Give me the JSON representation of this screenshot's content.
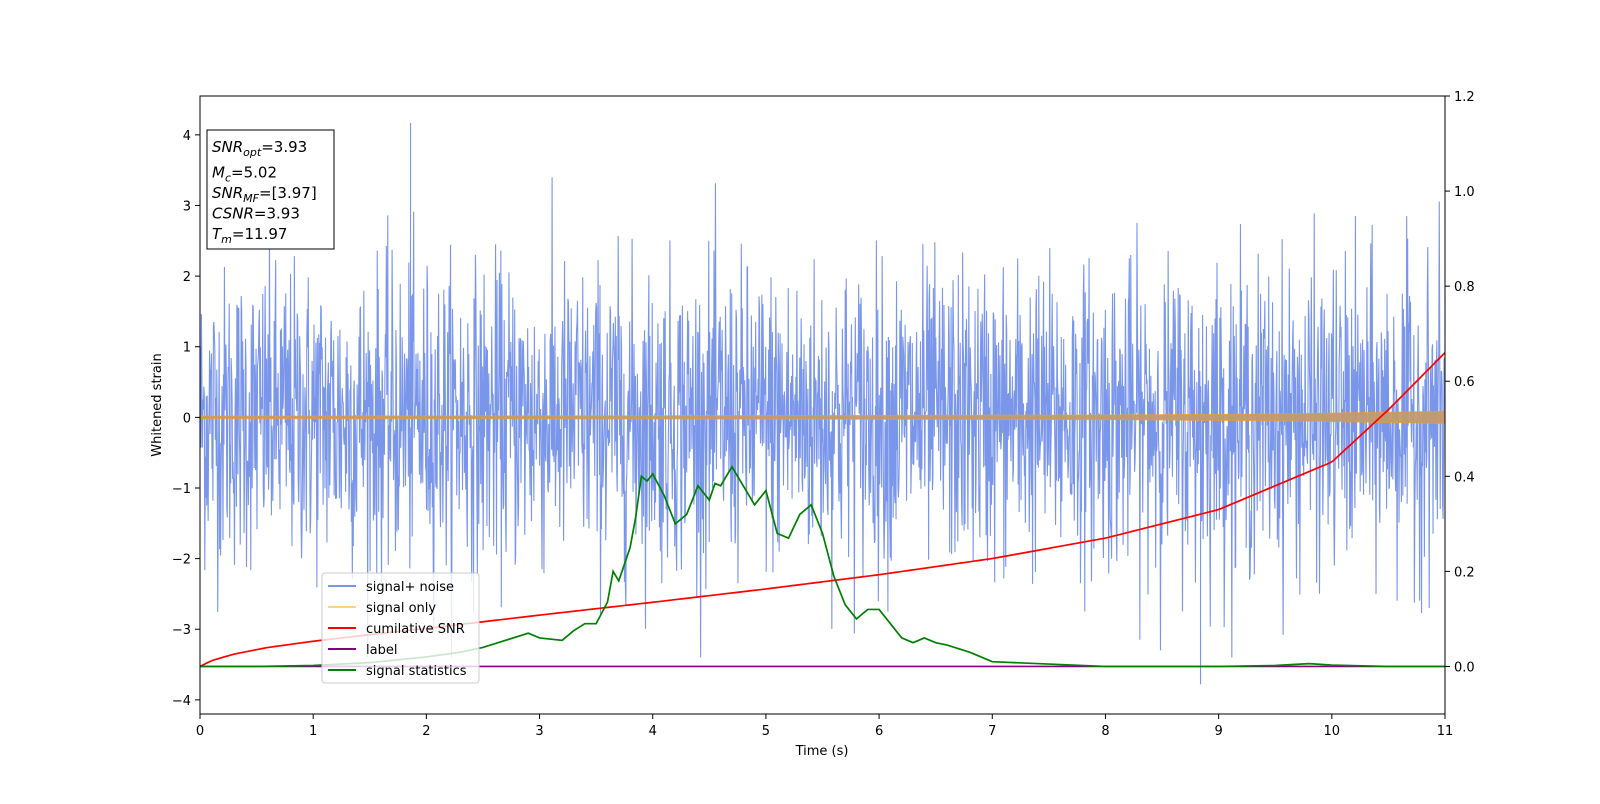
{
  "chart_data": {
    "type": "line",
    "title": "",
    "xlabel": "Time (s)",
    "ylabel": "Whitened strain",
    "xlim": [
      0,
      11
    ],
    "ylim_left": [
      -4.2,
      4.55
    ],
    "ylim_right": [
      -0.1,
      1.2
    ],
    "xticks": [
      "0",
      "1",
      "2",
      "3",
      "4",
      "5",
      "6",
      "7",
      "8",
      "9",
      "10",
      "11"
    ],
    "yticks_left": [
      "−4",
      "−3",
      "−2",
      "−1",
      "0",
      "1",
      "2",
      "3",
      "4"
    ],
    "yticks_right": [
      "0.0",
      "0.2",
      "0.4",
      "0.6",
      "0.8",
      "1.0",
      "1.2"
    ],
    "grid": false,
    "legend_position": "lower-left",
    "info_box": [
      {
        "name": "SNR",
        "sub": "opt",
        "value": "=3.93"
      },
      {
        "name": "M",
        "sub": "c",
        "value": "=5.02"
      },
      {
        "name": "SNR",
        "sub": "MF",
        "value": "=[3.97]"
      },
      {
        "name": "CSNR",
        "sub": "",
        "value": "=3.93"
      },
      {
        "name": "T",
        "sub": "m",
        "value": "=11.97"
      }
    ],
    "series": [
      {
        "name": "signal+ noise",
        "color": "#4169e1",
        "axis": "left",
        "kind": "noise",
        "sigma": 1.0,
        "peak_max": 4.17,
        "peak_max_x": 1.86,
        "peak_min": -3.78,
        "peak_min_x": 8.84
      },
      {
        "name": "signal only",
        "color": "#ffa500",
        "axis": "left",
        "kind": "chirp",
        "x": [
          0,
          4,
          8,
          9.5,
          10.5,
          11
        ],
        "amplitude": [
          0.02,
          0.025,
          0.035,
          0.05,
          0.075,
          0.09
        ]
      },
      {
        "name": "cumilative SNR",
        "color": "#ff0000",
        "axis": "right",
        "x": [
          0,
          0.1,
          0.3,
          0.6,
          1,
          1.5,
          2,
          3,
          4,
          5,
          6,
          7,
          8,
          9,
          10,
          10.5,
          11
        ],
        "values": [
          0.0,
          0.012,
          0.026,
          0.04,
          0.053,
          0.067,
          0.08,
          0.108,
          0.135,
          0.163,
          0.193,
          0.227,
          0.27,
          0.33,
          0.43,
          0.54,
          0.66
        ]
      },
      {
        "name": "label",
        "color": "#800080",
        "axis": "right",
        "x": [
          0,
          11
        ],
        "values": [
          0.0,
          0.0
        ]
      },
      {
        "name": "signal statistics",
        "color": "#008000",
        "axis": "right",
        "x": [
          0,
          0.5,
          1,
          1.5,
          2,
          2.3,
          2.5,
          2.7,
          2.9,
          3.0,
          3.2,
          3.3,
          3.4,
          3.5,
          3.6,
          3.65,
          3.7,
          3.8,
          3.85,
          3.9,
          3.95,
          4.0,
          4.1,
          4.2,
          4.3,
          4.4,
          4.5,
          4.55,
          4.6,
          4.7,
          4.75,
          4.8,
          4.9,
          5.0,
          5.1,
          5.2,
          5.3,
          5.4,
          5.5,
          5.6,
          5.7,
          5.8,
          5.9,
          6.0,
          6.1,
          6.2,
          6.3,
          6.4,
          6.5,
          6.6,
          6.8,
          7.0,
          7.5,
          8.0,
          9.0,
          9.5,
          9.8,
          10.0,
          10.5,
          11
        ],
        "values": [
          0.0,
          0.0,
          0.002,
          0.008,
          0.02,
          0.03,
          0.04,
          0.055,
          0.07,
          0.06,
          0.055,
          0.075,
          0.09,
          0.09,
          0.135,
          0.2,
          0.18,
          0.25,
          0.315,
          0.4,
          0.39,
          0.405,
          0.36,
          0.3,
          0.32,
          0.38,
          0.35,
          0.385,
          0.38,
          0.42,
          0.4,
          0.38,
          0.34,
          0.37,
          0.28,
          0.27,
          0.32,
          0.34,
          0.28,
          0.19,
          0.13,
          0.1,
          0.12,
          0.12,
          0.09,
          0.06,
          0.05,
          0.06,
          0.05,
          0.045,
          0.03,
          0.01,
          0.005,
          0.0,
          0.0,
          0.002,
          0.006,
          0.003,
          0.0,
          0.0
        ]
      }
    ]
  }
}
